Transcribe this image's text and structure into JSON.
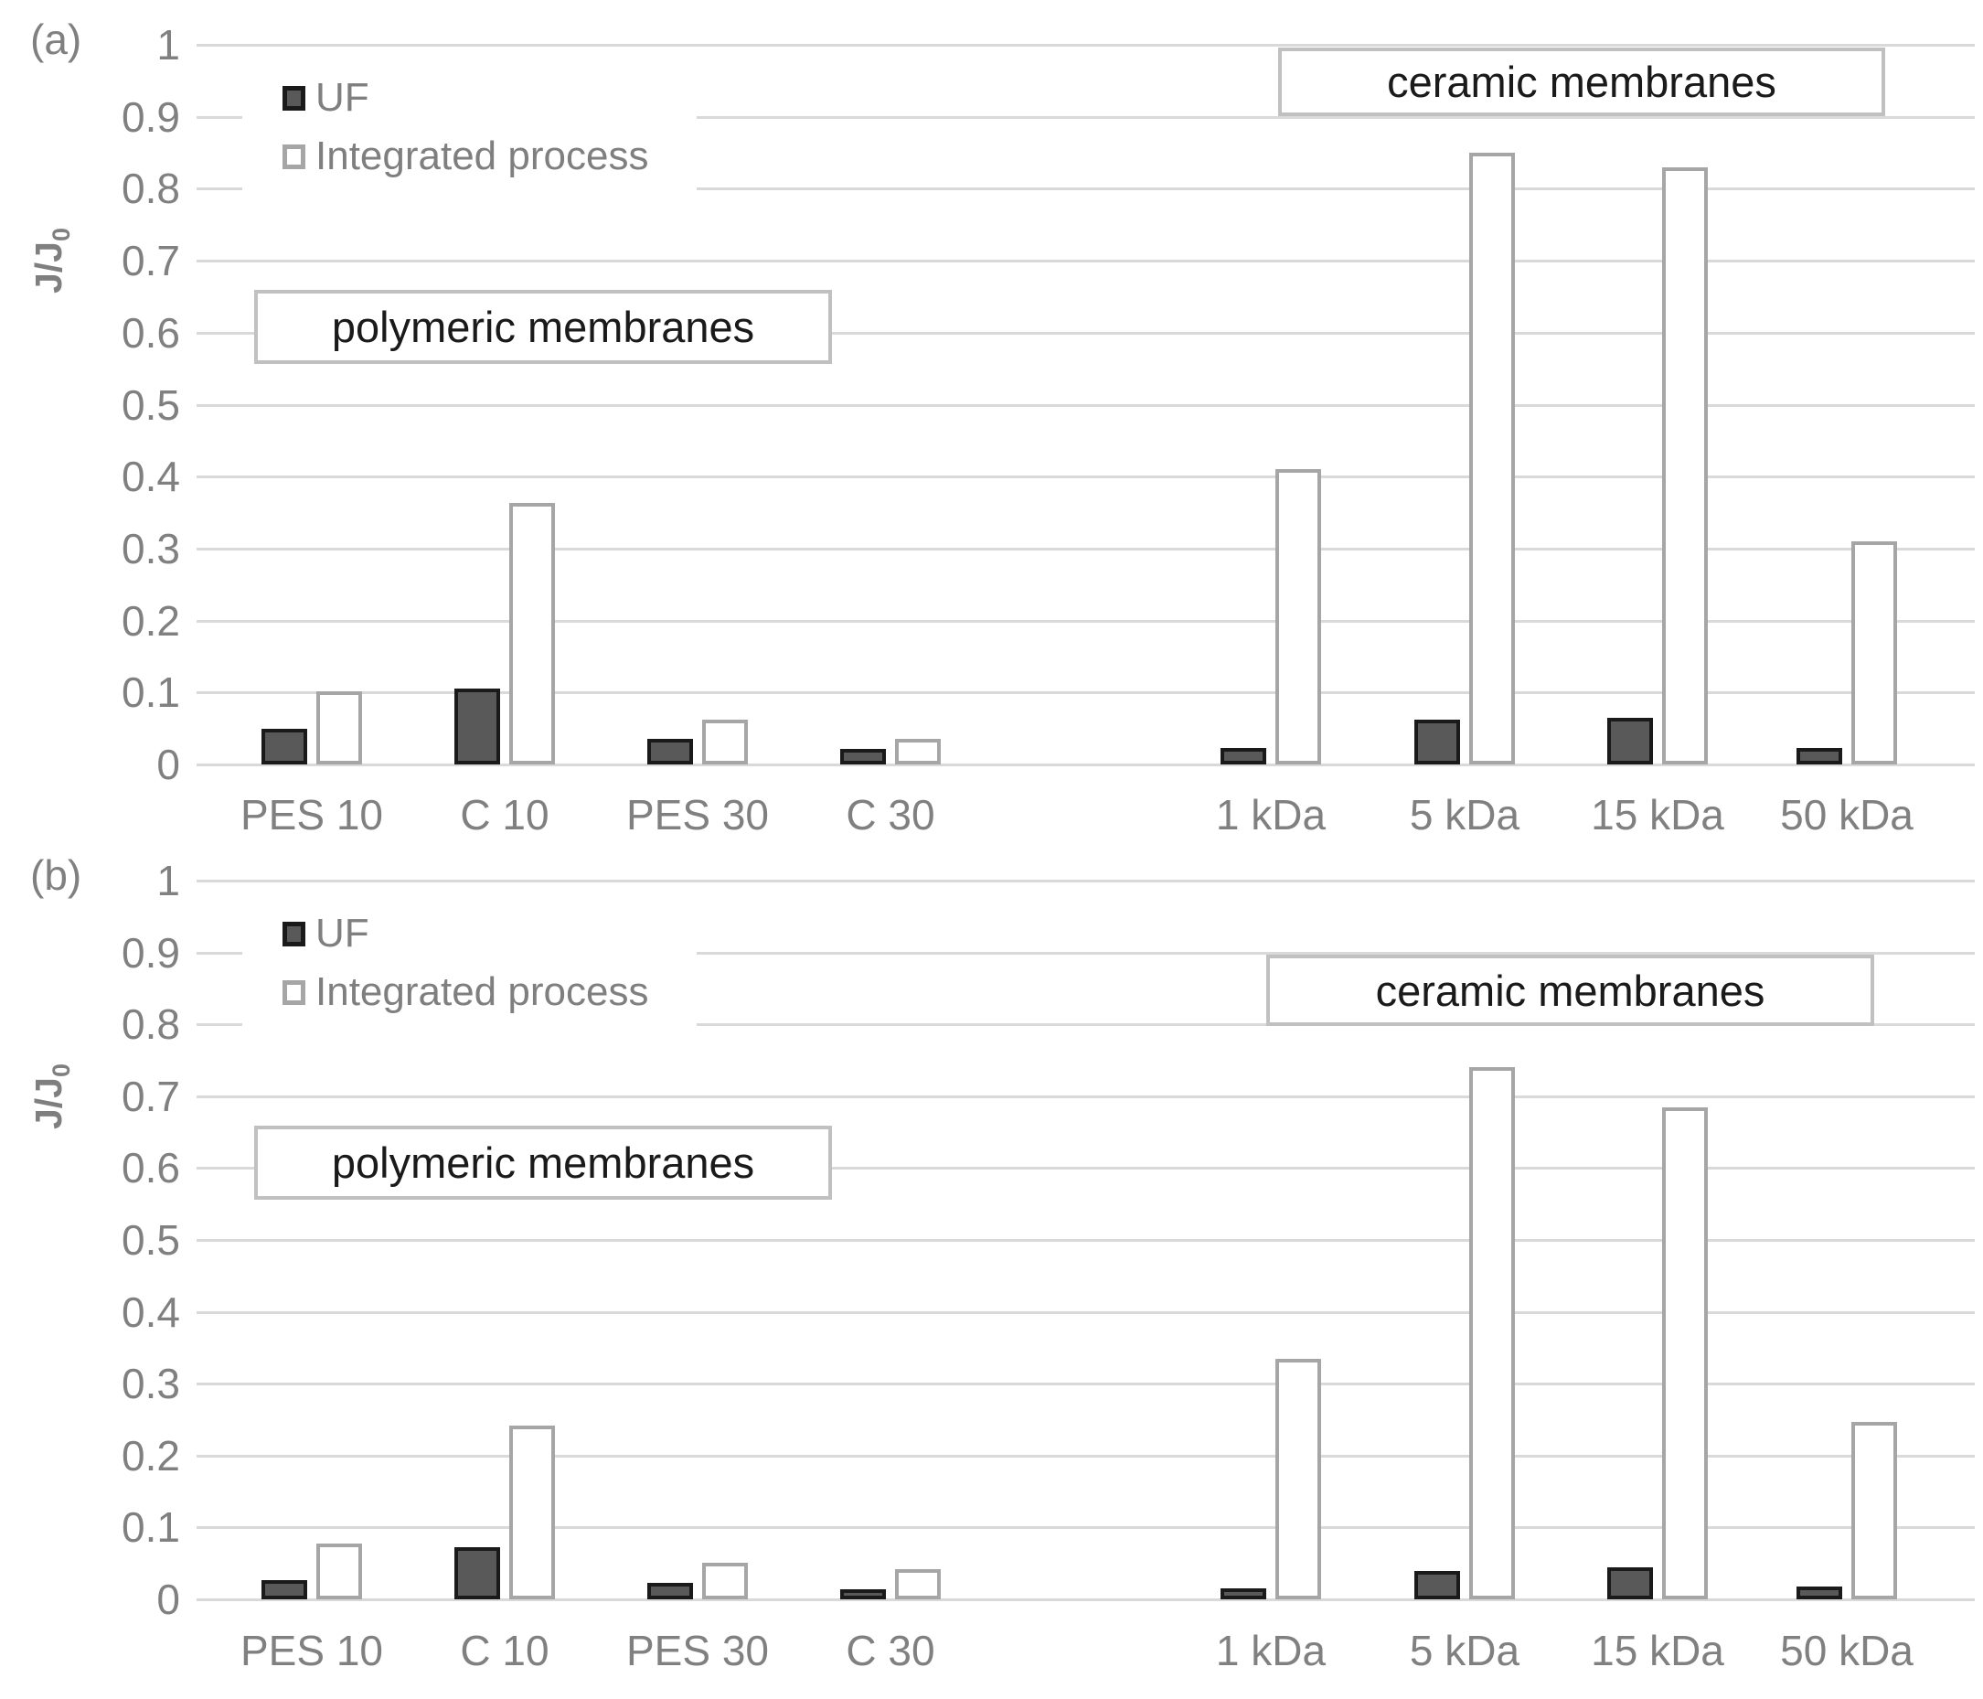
{
  "figure": {
    "colors": {
      "uf_fill": "#595959",
      "uf_border": "#1a1a1a",
      "integrated_fill": "#ffffff",
      "integrated_border": "#a6a6a6",
      "gridline": "#d9d9d9",
      "axis_text": "#808080",
      "legend_text": "#7f7f7f",
      "annotation_border": "#c0c0c0",
      "annotation_text": "#1a1a1a"
    }
  },
  "chart_data": [
    {
      "type": "bar",
      "panel_label": "(a)",
      "ylabel_main": "J/J",
      "ylabel_sub": "0",
      "ylim": [
        0,
        1
      ],
      "grid": true,
      "legend_position": "top-left-inside",
      "ytick_labels": [
        "0",
        "0.1",
        "0.2",
        "0.3",
        "0.4",
        "0.5",
        "0.6",
        "0.7",
        "0.8",
        "0.9",
        "1"
      ],
      "categories": [
        "PES 10",
        "C 10",
        "PES 30",
        "C 30",
        "1 kDa",
        "5 kDa",
        "15 kDa",
        "50 kDa"
      ],
      "series": [
        {
          "name": "UF",
          "values": [
            0.05,
            0.105,
            0.035,
            0.022,
            0.023,
            0.062,
            0.065,
            0.023
          ]
        },
        {
          "name": "Integrated process",
          "values": [
            0.102,
            0.363,
            0.062,
            0.035,
            0.41,
            0.85,
            0.83,
            0.31
          ]
        }
      ],
      "annotations": [
        {
          "text": "polymeric membranes",
          "applies_to": "first four categories"
        },
        {
          "text": "ceramic membranes",
          "applies_to": "last four categories"
        }
      ]
    },
    {
      "type": "bar",
      "panel_label": "(b)",
      "ylabel_main": "J/J",
      "ylabel_sub": "0",
      "ylim": [
        0,
        1
      ],
      "grid": true,
      "legend_position": "top-left-inside",
      "ytick_labels": [
        "0",
        "0.1",
        "0.2",
        "0.3",
        "0.4",
        "0.5",
        "0.6",
        "0.7",
        "0.8",
        "0.9",
        "1"
      ],
      "categories": [
        "PES 10",
        "C 10",
        "PES 30",
        "C 30",
        "1 kDa",
        "5 kDa",
        "15 kDa",
        "50 kDa"
      ],
      "series": [
        {
          "name": "UF",
          "values": [
            0.027,
            0.072,
            0.023,
            0.014,
            0.015,
            0.04,
            0.045,
            0.018
          ]
        },
        {
          "name": "Integrated process",
          "values": [
            0.077,
            0.242,
            0.051,
            0.042,
            0.335,
            0.74,
            0.685,
            0.247
          ]
        }
      ],
      "annotations": [
        {
          "text": "polymeric membranes",
          "applies_to": "first four categories"
        },
        {
          "text": "ceramic membranes",
          "applies_to": "last four categories"
        }
      ]
    }
  ]
}
